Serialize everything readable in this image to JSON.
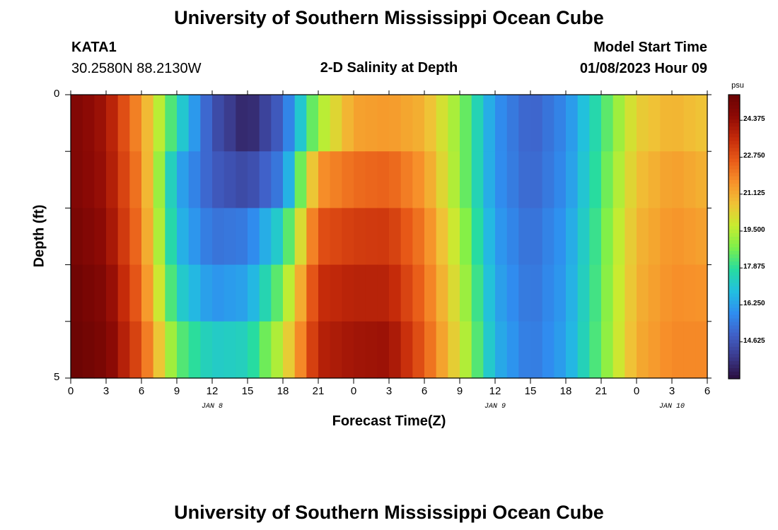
{
  "header": {
    "title": "University of Southern Mississippi Ocean Cube",
    "station": "KATA1",
    "coords": "30.2580N  88.2130W",
    "plot_title": "2-D Salinity at Depth",
    "model_start_label": "Model Start Time",
    "model_start_value": "01/08/2023 Hour 09"
  },
  "footer": {
    "title": "University of Southern Mississippi Ocean Cube"
  },
  "chart_data": {
    "type": "heatmap",
    "title": "2-D Salinity at Depth",
    "xlabel": "Forecast Time(Z)",
    "ylabel": "Depth (ft)",
    "x_tick_labels": [
      "0",
      "3",
      "6",
      "9",
      "12",
      "15",
      "18",
      "21",
      "0",
      "3",
      "6",
      "9",
      "12",
      "15",
      "18",
      "21",
      "0",
      "3",
      "6"
    ],
    "date_labels": [
      "JAN 8",
      "JAN 9",
      "JAN 10"
    ],
    "y_tick_labels": [
      "0",
      "5"
    ],
    "ylim": [
      0,
      5
    ],
    "colorbar": {
      "unit": "psu",
      "tick_labels": [
        "24.375",
        "22.750",
        "21.125",
        "19.500",
        "17.875",
        "16.250",
        "14.625"
      ],
      "range": [
        13.0,
        25.5
      ],
      "colors": [
        "#2b0f3f",
        "#3b3a8c",
        "#4060c8",
        "#2f8ef0",
        "#22bfe0",
        "#27dca0",
        "#7df04a",
        "#c8ec30",
        "#f0c236",
        "#f7912a",
        "#e85a18",
        "#c42a0a",
        "#8e0a05",
        "#6a0404"
      ]
    },
    "x_hours": [
      0,
      3,
      6,
      9,
      12,
      15,
      18,
      21,
      24,
      27,
      30,
      33,
      36,
      39,
      42,
      45,
      48,
      51,
      54
    ],
    "depth_rows": [
      "0-1 ft",
      "1-2 ft",
      "2-3 ft",
      "3-4 ft",
      "4-5 ft"
    ],
    "salinity": [
      [
        25.0,
        24.2,
        21.5,
        17.6,
        14.6,
        13.4,
        15.0,
        19.2,
        21.3,
        21.5,
        21.0,
        19.0,
        16.0,
        14.9,
        15.8,
        18.0,
        20.4,
        21.0,
        20.6
      ],
      [
        25.0,
        24.3,
        21.8,
        16.5,
        14.8,
        14.3,
        15.6,
        21.6,
        22.3,
        22.5,
        21.5,
        19.0,
        16.0,
        15.0,
        15.9,
        18.2,
        20.7,
        21.4,
        21.0
      ],
      [
        25.2,
        24.5,
        22.0,
        16.8,
        15.3,
        15.5,
        17.5,
        22.8,
        23.2,
        23.3,
        22.0,
        19.4,
        16.2,
        15.2,
        16.1,
        18.4,
        20.9,
        21.6,
        21.3
      ],
      [
        25.4,
        24.8,
        22.3,
        17.4,
        16.0,
        16.3,
        18.8,
        23.5,
        23.8,
        23.8,
        22.3,
        19.7,
        16.4,
        15.3,
        16.2,
        18.5,
        21.0,
        21.7,
        21.6
      ],
      [
        25.5,
        25.0,
        22.7,
        18.5,
        17.2,
        17.4,
        19.8,
        23.8,
        24.2,
        24.3,
        22.6,
        20.0,
        16.6,
        15.4,
        16.3,
        18.6,
        21.1,
        21.8,
        21.8
      ]
    ]
  }
}
